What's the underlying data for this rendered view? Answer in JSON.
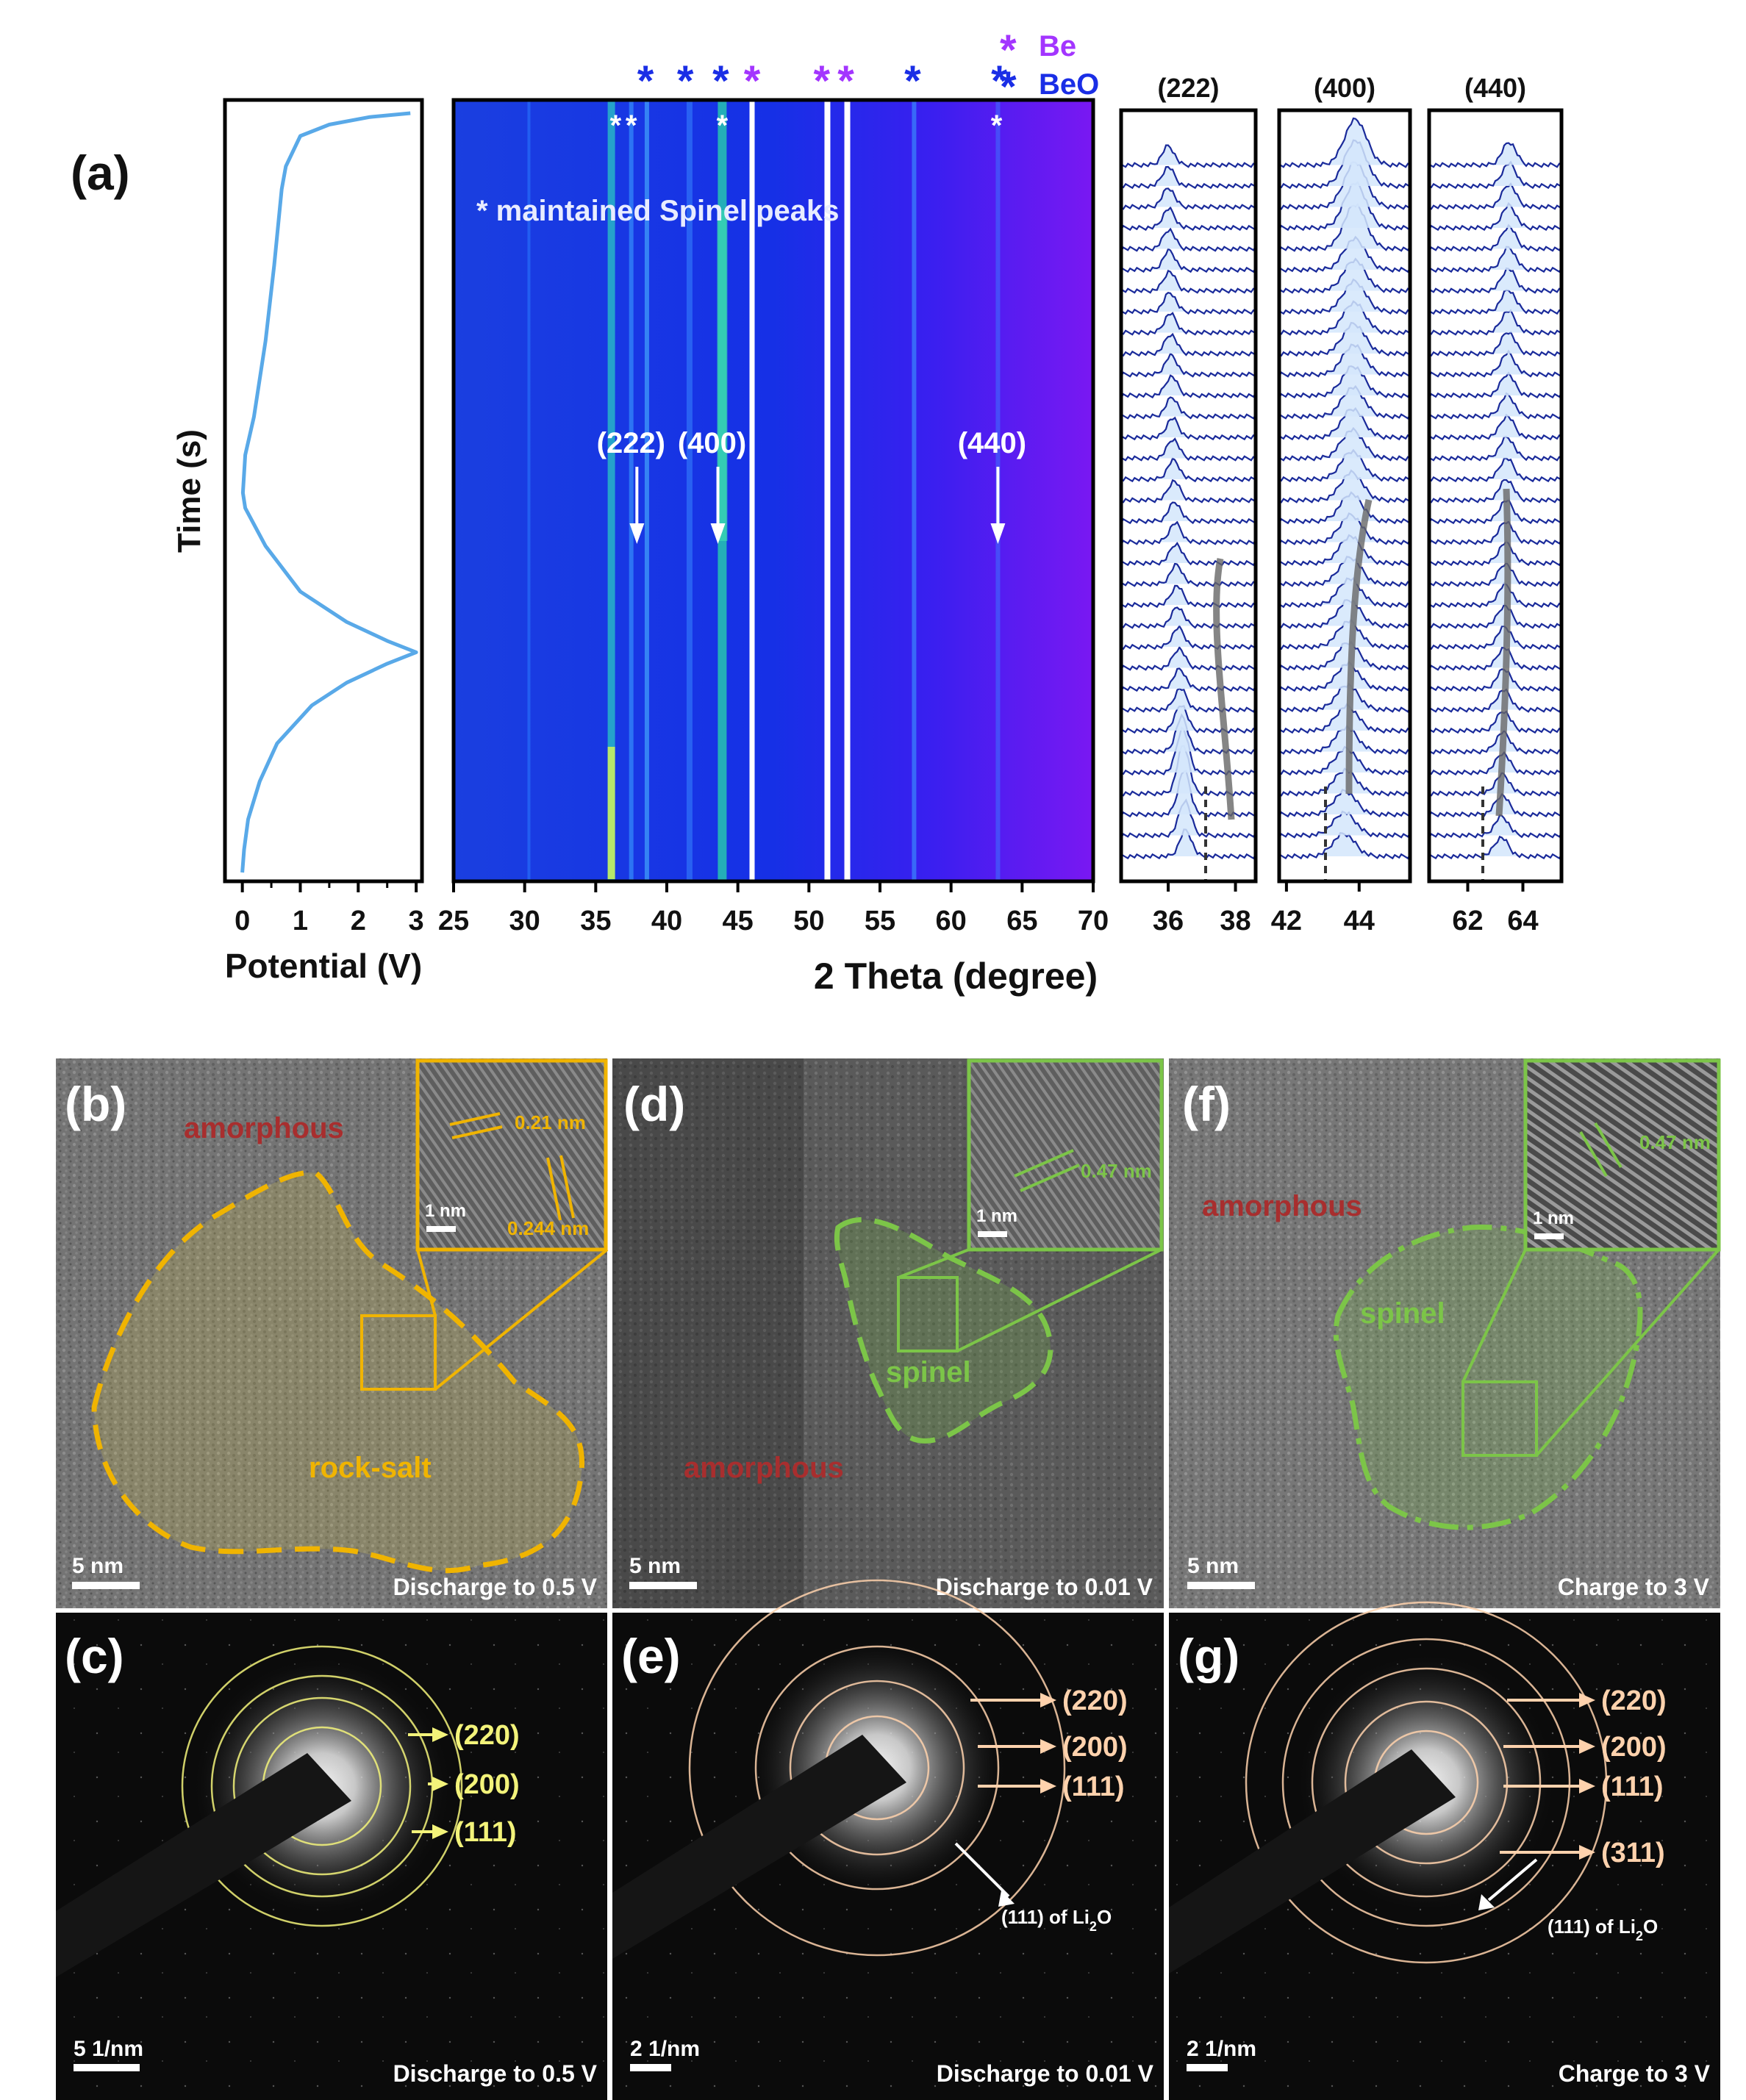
{
  "panel_a": {
    "label": "(a)",
    "potential_plot": {
      "ylabel": "Time (s)",
      "xlabel": "Potential (V)",
      "xticks": [
        "0",
        "1",
        "2",
        "3"
      ],
      "xlim": [
        -0.3,
        3.1
      ],
      "curve": [
        [
          2.9,
          0.0
        ],
        [
          2.2,
          0.005
        ],
        [
          1.5,
          0.015
        ],
        [
          1.0,
          0.03
        ],
        [
          0.75,
          0.07
        ],
        [
          0.68,
          0.1
        ],
        [
          0.55,
          0.2
        ],
        [
          0.4,
          0.3
        ],
        [
          0.2,
          0.4
        ],
        [
          0.05,
          0.45
        ],
        [
          0.01,
          0.5
        ],
        [
          0.05,
          0.52
        ],
        [
          0.4,
          0.57
        ],
        [
          1.0,
          0.63
        ],
        [
          1.8,
          0.67
        ],
        [
          2.5,
          0.695
        ],
        [
          3.0,
          0.71
        ],
        [
          2.5,
          0.725
        ],
        [
          1.8,
          0.75
        ],
        [
          1.2,
          0.78
        ],
        [
          0.6,
          0.83
        ],
        [
          0.3,
          0.88
        ],
        [
          0.1,
          0.93
        ],
        [
          0.03,
          0.97
        ],
        [
          0.0,
          1.0
        ]
      ]
    },
    "xrd_map": {
      "xlabel": "2 Theta (degree)",
      "xticks": [
        "25",
        "30",
        "35",
        "40",
        "45",
        "50",
        "55",
        "60",
        "65",
        "70"
      ],
      "xlim": [
        25,
        70
      ],
      "annotation": "* maintained Spinel peaks",
      "peak_labels": [
        {
          "text": "(222)",
          "x": 38.0
        },
        {
          "text": "(400)",
          "x": 43.7
        },
        {
          "text": "(440)",
          "x": 63.4
        }
      ],
      "maintained_marks": [
        36.4,
        37.5,
        43.9,
        63.2
      ],
      "be_marks": [
        46.0,
        50.9,
        52.6
      ],
      "beo_marks": [
        38.5,
        41.3,
        43.8,
        57.3,
        63.4
      ],
      "legend": {
        "mark": "*",
        "be": "Be",
        "beo": "BeO",
        "be_color": "#a335ff",
        "beo_color": "#1a2ee6"
      },
      "bright_lines": [
        46.0,
        51.3,
        52.7
      ]
    },
    "profiles": [
      {
        "title": "(222)",
        "xticks": [
          "36",
          "38"
        ],
        "xlim": [
          34.6,
          38.6
        ]
      },
      {
        "title": "(400)",
        "xticks": [
          "42",
          "44"
        ],
        "xlim": [
          41.8,
          45.4
        ]
      },
      {
        "title": "(440)",
        "xticks": [
          "62",
          "64"
        ],
        "xlim": [
          60.6,
          65.4
        ]
      }
    ]
  },
  "panel_b": {
    "label": "(b)",
    "phase1": "amorphous",
    "phase2": "rock-salt",
    "d1": "0.21 nm",
    "d2": "0.244 nm",
    "inset_scale": "1 nm",
    "scale": "5 nm",
    "caption": "Discharge to 0.5 V",
    "accent": "#f0b400"
  },
  "panel_c": {
    "label": "(c)",
    "rings": [
      "(220)",
      "(200)",
      "(111)"
    ],
    "scale": "5 1/nm",
    "caption": "Discharge to 0.5 V",
    "accent": "#f3f37a"
  },
  "panel_d": {
    "label": "(d)",
    "phase1": "amorphous",
    "phase2": "spinel",
    "d1": "0.47 nm",
    "inset_scale": "1 nm",
    "scale": "5 nm",
    "caption": "Discharge to 0.01 V",
    "accent": "#7cc548"
  },
  "panel_e": {
    "label": "(e)",
    "rings": [
      "(220)",
      "(200)",
      "(111)"
    ],
    "li2o": "(111)  of Li",
    "li2o_sub": "2",
    "li2o_end": "O",
    "scale": "2 1/nm",
    "caption": "Discharge to 0.01 V",
    "accent": "#ffd2ad"
  },
  "panel_f": {
    "label": "(f)",
    "phase1": "amorphous",
    "phase2": "spinel",
    "d1": "0.47 nm",
    "inset_scale": "1 nm",
    "scale": "5 nm",
    "caption": "Charge to 3 V",
    "accent": "#7cc548"
  },
  "panel_g": {
    "label": "(g)",
    "rings": [
      "(220)",
      "(200)",
      "(111)",
      "(311)"
    ],
    "li2o": "(111)  of Li",
    "li2o_sub": "2",
    "li2o_end": "O",
    "scale": "2 1/nm",
    "caption": "Charge to 3 V",
    "accent": "#ffd2ad"
  }
}
